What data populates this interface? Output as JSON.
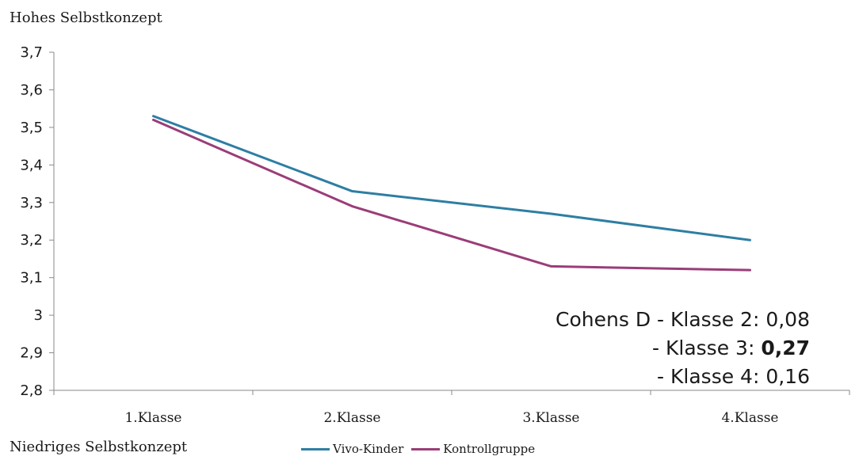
{
  "top_note": "Hohes Selbstkonzept",
  "bottom_note": "Niedriges Selbstkonzept",
  "colors": {
    "vivo": "#2e7ea3",
    "kontroll": "#9a3d78",
    "axis": "#8a8a8a"
  },
  "annotation": {
    "line1_prefix": "Cohens D - Klasse 2: ",
    "line1_value": "0,08",
    "line2_prefix": "- Klasse 3: ",
    "line2_value": "0,27",
    "line3_prefix": "- Klasse 4: ",
    "line3_value": "0,16"
  },
  "chart_data": {
    "type": "line",
    "categories": [
      "1.Klasse",
      "2.Klasse",
      "3.Klasse",
      "4.Klasse"
    ],
    "series": [
      {
        "name": "Vivo-Kinder",
        "values": [
          3.53,
          3.33,
          3.27,
          3.2
        ]
      },
      {
        "name": "Kontrollgruppe",
        "values": [
          3.52,
          3.29,
          3.13,
          3.12
        ]
      }
    ],
    "yticks": [
      "3,7",
      "3,6",
      "3,5",
      "3,4",
      "3,3",
      "3,2",
      "3,1",
      "3",
      "2,9",
      "2,8"
    ],
    "ylim": [
      2.8,
      3.7
    ],
    "grid": false,
    "legend_position": "bottom",
    "title": "",
    "xlabel": "",
    "ylabel": ""
  }
}
